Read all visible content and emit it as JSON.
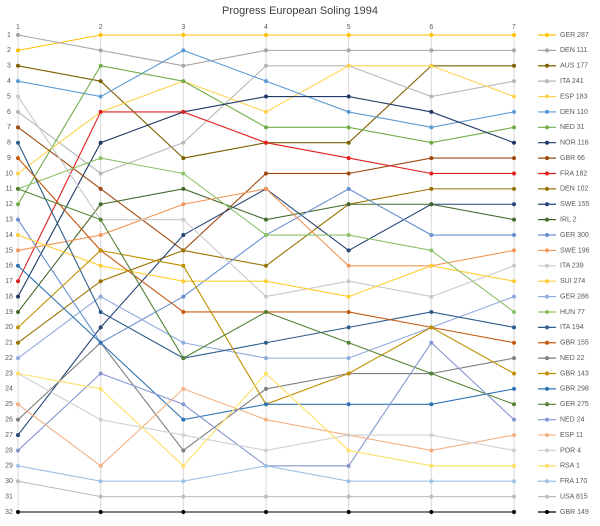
{
  "chart_data": {
    "type": "line",
    "title": "Progress European Soling 1994",
    "x": [
      1,
      2,
      3,
      4,
      5,
      6,
      7
    ],
    "xlim": [
      1,
      7
    ],
    "xticks": [
      1,
      2,
      3,
      4,
      5,
      6,
      7
    ],
    "ylim": [
      1,
      32
    ],
    "y_inverted": true,
    "yticks": [
      1,
      2,
      3,
      4,
      5,
      6,
      7,
      8,
      9,
      10,
      11,
      12,
      13,
      14,
      15,
      16,
      17,
      18,
      19,
      20,
      21,
      22,
      23,
      24,
      25,
      26,
      27,
      28,
      29,
      30,
      31,
      32
    ],
    "grid": true,
    "legend": "right",
    "series": [
      {
        "name": "GER 287",
        "color": "#ffc000",
        "values": [
          2,
          1,
          1,
          1,
          1,
          1,
          1
        ]
      },
      {
        "name": "DEN 111",
        "color": "#a5a5a5",
        "values": [
          1,
          2,
          3,
          2,
          2,
          2,
          2
        ]
      },
      {
        "name": "AUS 177",
        "color": "#7f6000",
        "values": [
          3,
          4,
          9,
          8,
          8,
          3,
          3
        ]
      },
      {
        "name": "ITA 241",
        "color": "#b7b7b7",
        "values": [
          6,
          10,
          8,
          3,
          3,
          5,
          4
        ]
      },
      {
        "name": "ESP 183",
        "color": "#ffd24d",
        "values": [
          10,
          6,
          4,
          6,
          3,
          3,
          5
        ]
      },
      {
        "name": "DEN 110",
        "color": "#5b9bd5",
        "values": [
          4,
          5,
          2,
          4,
          6,
          7,
          6
        ]
      },
      {
        "name": "NED 31",
        "color": "#70ad47",
        "values": [
          12,
          3,
          4,
          7,
          7,
          8,
          7
        ]
      },
      {
        "name": "NOR 116",
        "color": "#203864",
        "values": [
          18,
          8,
          6,
          5,
          5,
          6,
          8
        ]
      },
      {
        "name": "GBR 66",
        "color": "#9e480e",
        "values": [
          7,
          11,
          15,
          10,
          10,
          9,
          9
        ]
      },
      {
        "name": "FRA 182",
        "color": "#e02020",
        "values": [
          17,
          6,
          6,
          8,
          9,
          10,
          10
        ]
      },
      {
        "name": "DEN 102",
        "color": "#997300",
        "values": [
          21,
          17,
          15,
          16,
          12,
          11,
          11
        ]
      },
      {
        "name": "SWE 155",
        "color": "#264478",
        "values": [
          27,
          20,
          14,
          11,
          15,
          12,
          12
        ]
      },
      {
        "name": "IRL 2",
        "color": "#43682b",
        "values": [
          19,
          12,
          11,
          13,
          12,
          12,
          13
        ]
      },
      {
        "name": "GER 300",
        "color": "#698ed0",
        "values": [
          13,
          21,
          18,
          14,
          11,
          14,
          14
        ]
      },
      {
        "name": "SWE 196",
        "color": "#f1975a",
        "values": [
          15,
          14,
          12,
          11,
          16,
          16,
          15
        ]
      },
      {
        "name": "ITA 239",
        "color": "#c9c9c9",
        "values": [
          5,
          13,
          13,
          18,
          17,
          18,
          16
        ]
      },
      {
        "name": "SUI 274",
        "color": "#ffcd33",
        "values": [
          14,
          16,
          17,
          17,
          18,
          16,
          17
        ]
      },
      {
        "name": "GER 286",
        "color": "#8faadc",
        "values": [
          22,
          18,
          21,
          22,
          22,
          20,
          18
        ]
      },
      {
        "name": "HUN 77",
        "color": "#8cc168",
        "values": [
          11,
          9,
          10,
          14,
          14,
          15,
          19
        ]
      },
      {
        "name": "ITA 194",
        "color": "#2e5c8a",
        "values": [
          8,
          19,
          22,
          21,
          20,
          19,
          20
        ]
      },
      {
        "name": "GBR 155",
        "color": "#c55a11",
        "values": [
          9,
          15,
          19,
          19,
          19,
          20,
          21
        ]
      },
      {
        "name": "NED 22",
        "color": "#7f7f7f",
        "values": [
          26,
          21,
          28,
          24,
          23,
          23,
          22
        ]
      },
      {
        "name": "GBR 143",
        "color": "#bf9000",
        "values": [
          20,
          15,
          16,
          25,
          23,
          20,
          23
        ]
      },
      {
        "name": "GBR 298",
        "color": "#2f75b5",
        "values": [
          16,
          21,
          26,
          25,
          25,
          25,
          24
        ]
      },
      {
        "name": "GER 275",
        "color": "#548235",
        "values": [
          11,
          13,
          22,
          19,
          21,
          23,
          25
        ]
      },
      {
        "name": "NED 24",
        "color": "#8497d0",
        "values": [
          28,
          23,
          25,
          29,
          29,
          21,
          26
        ]
      },
      {
        "name": "ESP 11",
        "color": "#f4b183",
        "values": [
          25,
          29,
          24,
          26,
          27,
          28,
          27
        ]
      },
      {
        "name": "POR 4",
        "color": "#d0d0d0",
        "values": [
          23,
          26,
          27,
          28,
          27,
          27,
          28
        ]
      },
      {
        "name": "RSA 1",
        "color": "#ffe066",
        "values": [
          23,
          24,
          29,
          23,
          28,
          29,
          29
        ]
      },
      {
        "name": "FRA 170",
        "color": "#9dc3e6",
        "values": [
          29,
          30,
          30,
          29,
          30,
          30,
          30
        ]
      },
      {
        "name": "USA 815",
        "color": "#bdbdbd",
        "values": [
          30,
          31,
          31,
          31,
          31,
          31,
          31
        ]
      },
      {
        "name": "GBR 149",
        "color": "#000000",
        "values": [
          32,
          32,
          32,
          32,
          32,
          32,
          32
        ]
      }
    ]
  }
}
